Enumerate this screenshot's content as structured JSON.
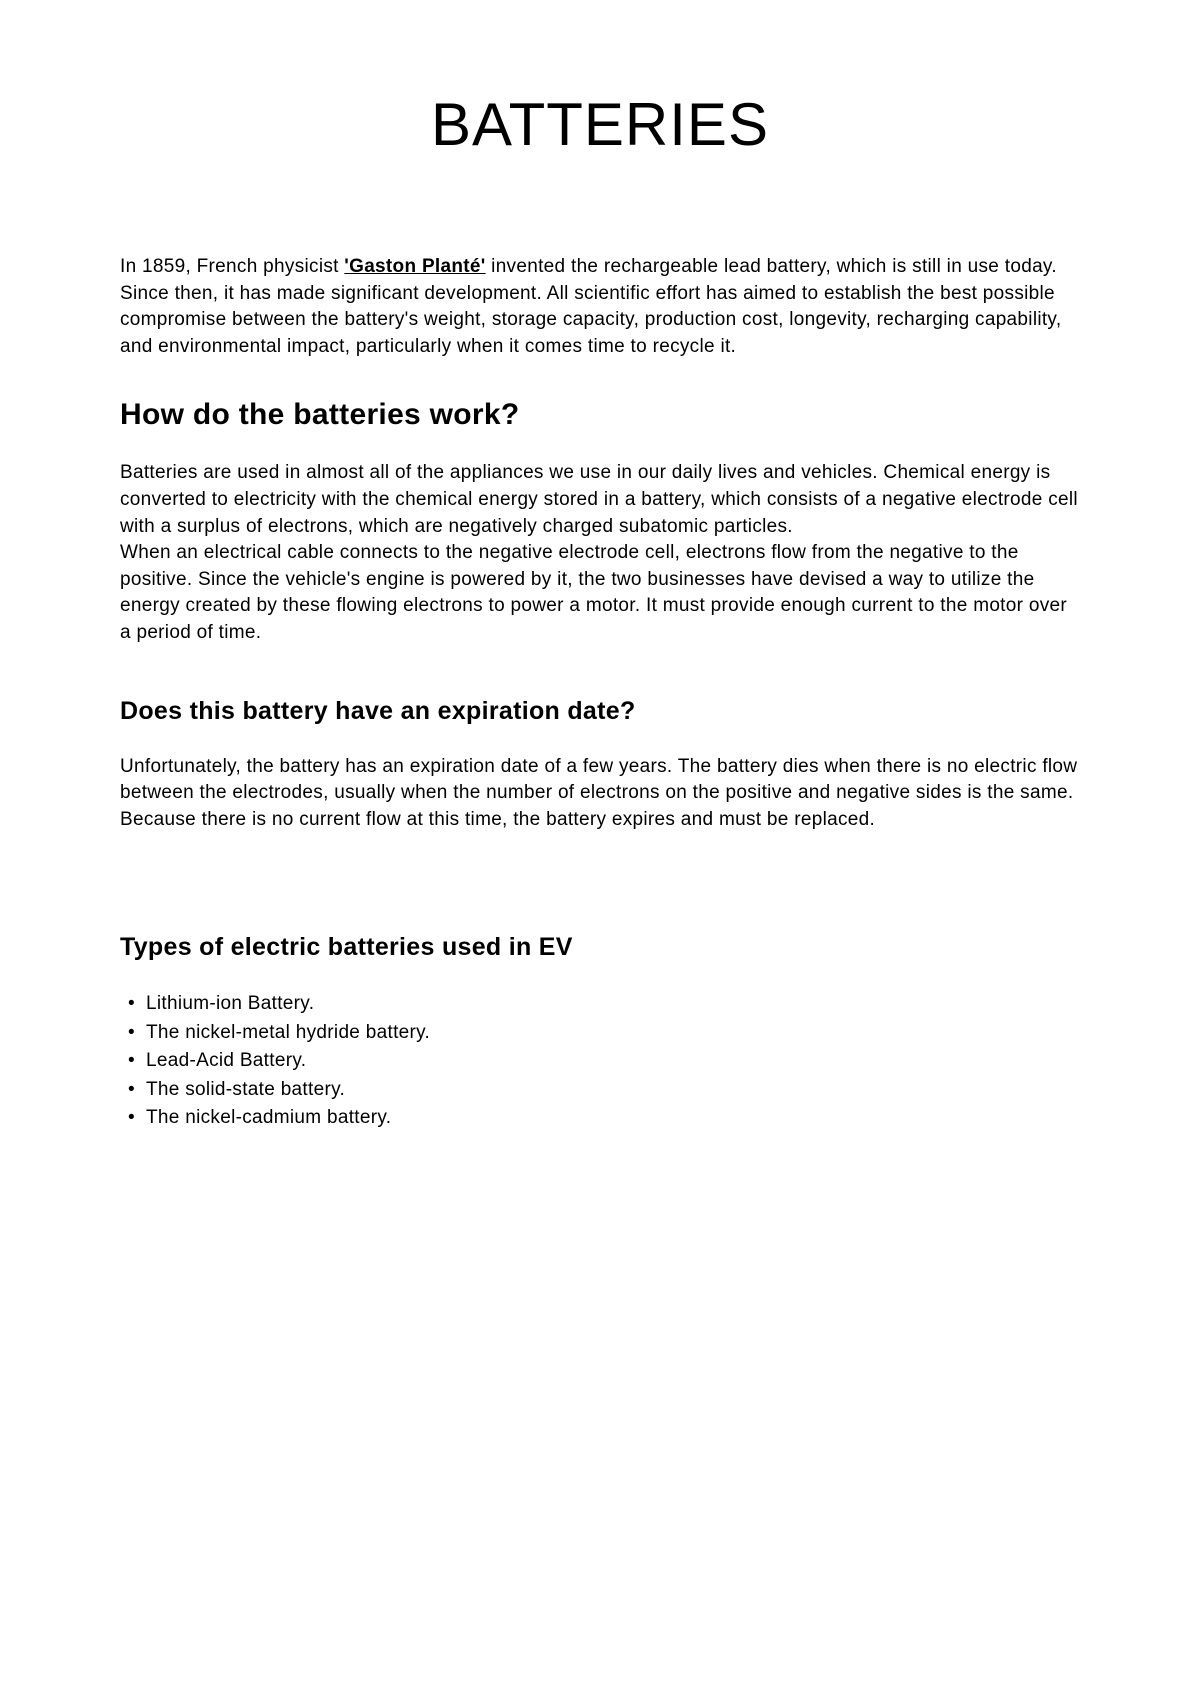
{
  "title": "BATTERIES",
  "intro": {
    "prefix": "In 1859, French physicist ",
    "highlighted": "'Gaston Planté'",
    "suffix": " invented the rechargeable lead battery, which is still in use today. Since then, it has made significant development. All scientific effort has aimed to establish the best possible compromise between the battery's weight, storage capacity, production cost, longevity, recharging capability, and environmental impact, particularly when it comes time to recycle it."
  },
  "section1": {
    "heading": "How do the batteries work?",
    "paragraph": "Batteries are used in almost all of the appliances we use in our daily lives and vehicles. Chemical energy is converted to electricity with the chemical energy stored in a battery, which consists of a negative electrode cell with a surplus of electrons, which are negatively charged subatomic particles.\nWhen an electrical cable connects to the negative electrode cell, electrons flow from the negative to the positive. Since the vehicle's engine is powered by it, the two businesses have devised a way to utilize the energy created by these flowing electrons to power a motor. It must provide enough current to the motor over a period of time."
  },
  "section2": {
    "heading": "Does this battery have an expiration date?",
    "paragraph": "Unfortunately, the battery has an expiration date of a few years. The battery dies when there is no electric flow between the electrodes, usually when the number of electrons on the positive and negative sides is the same. Because there is no current flow at this time, the battery expires and must be replaced."
  },
  "section3": {
    "heading": "Types of electric batteries used in EV",
    "items": [
      "Lithium-ion Battery.",
      "The nickel-metal hydride battery.",
      "Lead-Acid Battery.",
      "The solid-state battery.",
      "The nickel-cadmium battery."
    ]
  },
  "colors": {
    "background": "#ffffff",
    "text": "#000000"
  },
  "typography": {
    "title_fontsize": 60,
    "heading_large_fontsize": 30,
    "heading_medium_fontsize": 25,
    "body_fontsize": 19
  }
}
